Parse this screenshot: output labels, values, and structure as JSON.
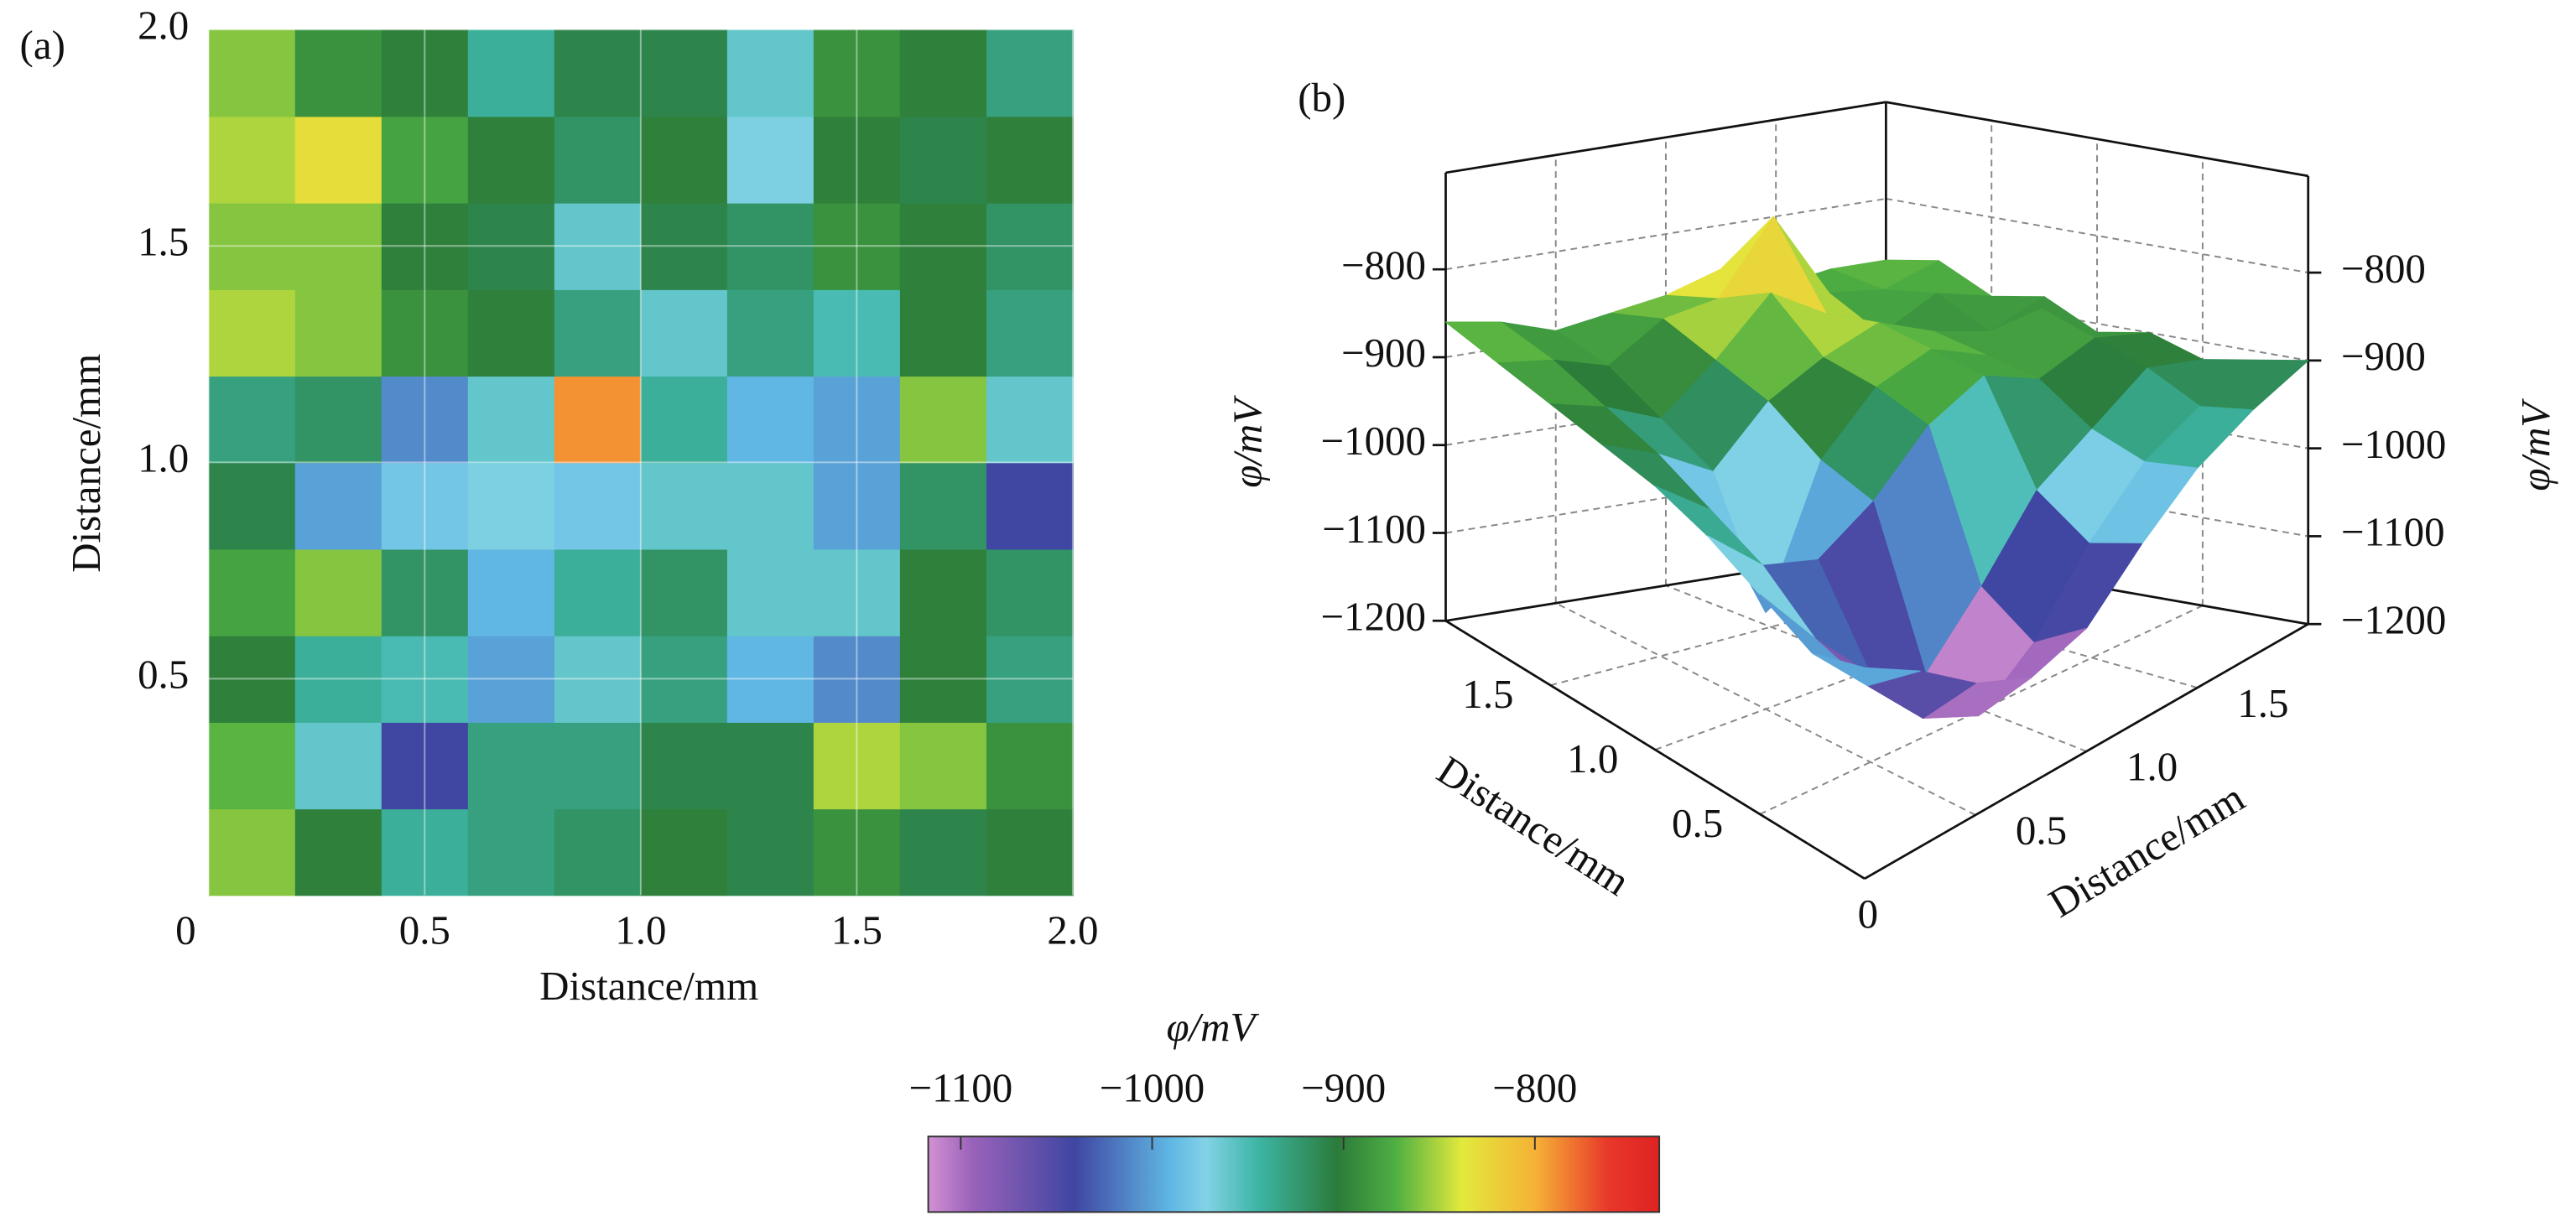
{
  "chart_data": [
    {
      "type": "heatmap",
      "panel_label": "(a)",
      "xlabel": "Distance/mm",
      "ylabel": "Distance/mm",
      "xlim": [
        0,
        2
      ],
      "ylim": [
        0,
        2
      ],
      "xticks": [
        0,
        0.5,
        {
          "value": 1,
          "label": "1.0"
        },
        1.5,
        {
          "value": 2,
          "label": "2.0"
        }
      ],
      "yticks": [
        0.5,
        {
          "value": 1,
          "label": "1.0"
        },
        1.5,
        {
          "value": 2,
          "label": "2.0"
        }
      ],
      "grid": true,
      "x": [
        0.1,
        0.3,
        0.5,
        0.7,
        0.9,
        1.1,
        1.3,
        1.5,
        1.7,
        1.9
      ],
      "y": [
        0.1,
        0.3,
        0.5,
        0.7,
        0.9,
        1.1,
        1.3,
        1.5,
        1.7,
        1.9
      ],
      "z": [
        [
          -860,
          -900,
          -940,
          -930,
          -920,
          -900,
          -910,
          -890,
          -910,
          -900
        ],
        [
          -870,
          -960,
          -1040,
          -930,
          -930,
          -910,
          -910,
          -850,
          -860,
          -890
        ],
        [
          -900,
          -940,
          -950,
          -1000,
          -960,
          -930,
          -990,
          -1010,
          -900,
          -930
        ],
        [
          -880,
          -860,
          -920,
          -990,
          -940,
          -920,
          -960,
          -960,
          -900,
          -920
        ],
        [
          -910,
          -1000,
          -980,
          -970,
          -980,
          -960,
          -960,
          -1000,
          -920,
          -1040
        ],
        [
          -930,
          -920,
          -1010,
          -960,
          -790,
          -940,
          -990,
          -1000,
          -860,
          -960
        ],
        [
          -850,
          -860,
          -890,
          -900,
          -930,
          -960,
          -930,
          -950,
          -900,
          -930
        ],
        [
          -860,
          -860,
          -900,
          -910,
          -960,
          -910,
          -920,
          -890,
          -900,
          -920
        ],
        [
          -850,
          -830,
          -880,
          -900,
          -920,
          -900,
          -970,
          -900,
          -910,
          -900
        ],
        [
          -860,
          -890,
          -900,
          -940,
          -910,
          -910,
          -960,
          -890,
          -900,
          -930
        ]
      ],
      "colorbar": {
        "label": "φ/mV",
        "lim": [
          -1117,
          -735
        ],
        "ticks": [
          {
            "value": -1100,
            "label": "−1100"
          },
          {
            "value": -1000,
            "label": "−1000"
          },
          {
            "value": -900,
            "label": "−900"
          },
          {
            "value": -800,
            "label": "−800"
          }
        ]
      }
    },
    {
      "type": "surface3d",
      "panel_label": "(b)",
      "xlabel": "Distance/mm",
      "ylabel": "Distance/mm",
      "zlabel": "φ/mV",
      "xlim": [
        0,
        2
      ],
      "ylim": [
        0,
        2
      ],
      "zlim": [
        -1200,
        -690
      ],
      "xticks": [
        0.5,
        {
          "value": 1,
          "label": "1.0"
        },
        1.5
      ],
      "yticks": [
        0,
        0.5,
        {
          "value": 1,
          "label": "1.0"
        },
        1.5
      ],
      "zticks": [
        {
          "value": -800,
          "label": "−800"
        },
        {
          "value": -900,
          "label": "−900"
        },
        {
          "value": -1000,
          "label": "−1000"
        },
        {
          "value": -1100,
          "label": "−1100"
        },
        {
          "value": -1200,
          "label": "−1200"
        }
      ],
      "x": [
        0,
        0.25,
        0.5,
        0.75,
        1,
        1.25,
        1.5,
        1.75,
        2
      ],
      "y": [
        0,
        0.25,
        0.5,
        0.75,
        1,
        1.25,
        1.5,
        1.75,
        2
      ],
      "z": [
        [
          -960,
          -1000,
          -1050,
          -1080,
          -1060,
          -1000,
          -950,
          -920,
          -900
        ],
        [
          -980,
          -1050,
          -1120,
          -1150,
          -1100,
          -1020,
          -960,
          -930,
          -910
        ],
        [
          -950,
          -1030,
          -1100,
          -1130,
          -1060,
          -980,
          -940,
          -900,
          -920
        ],
        [
          -920,
          -980,
          -1000,
          -960,
          -900,
          -870,
          -900,
          -880,
          -900
        ],
        [
          -900,
          -950,
          -1090,
          -940,
          -880,
          -860,
          -890,
          -860,
          -910
        ],
        [
          -890,
          -920,
          -960,
          -900,
          -870,
          -850,
          -880,
          -900,
          -880
        ],
        [
          -880,
          -900,
          -930,
          -880,
          -820,
          -860,
          -900,
          -870,
          -890
        ],
        [
          -870,
          -880,
          -900,
          -860,
          -850,
          -770,
          -870,
          -880,
          -860
        ],
        [
          -860,
          -870,
          -890,
          -880,
          -870,
          -850,
          -880,
          -870,
          -870
        ]
      ]
    }
  ]
}
